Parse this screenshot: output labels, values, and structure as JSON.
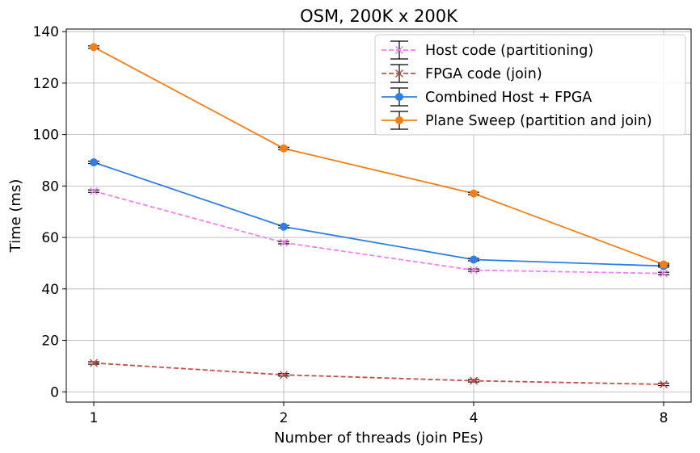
{
  "chart_data": {
    "type": "line",
    "title": "OSM, 200K x 200K",
    "xlabel": "Number of threads (join PEs)",
    "ylabel": "Time (ms)",
    "categories": [
      "1",
      "2",
      "4",
      "8"
    ],
    "ylim": [
      -4,
      141
    ],
    "yticks": [
      0,
      20,
      40,
      60,
      80,
      100,
      120,
      140
    ],
    "grid": true,
    "legend_position": "top-right",
    "series": [
      {
        "name": "Host code (partitioning)",
        "values": [
          78,
          58,
          47.3,
          46
        ],
        "color": "#ee82ee",
        "marker": "x",
        "dashed": true
      },
      {
        "name": "FPGA code (join)",
        "values": [
          11.2,
          6.6,
          4.3,
          2.9
        ],
        "color": "#c0504d",
        "marker": "x",
        "dashed": true
      },
      {
        "name": "Combined Host + FPGA",
        "values": [
          89.2,
          64.2,
          51.4,
          48.9
        ],
        "color": "#2f7fe0",
        "marker": "circle",
        "dashed": false
      },
      {
        "name": "Plane Sweep (partition and join)",
        "values": [
          134,
          94.6,
          77.1,
          49.5
        ],
        "color": "#f47f17",
        "marker": "circle",
        "dashed": false
      }
    ]
  }
}
